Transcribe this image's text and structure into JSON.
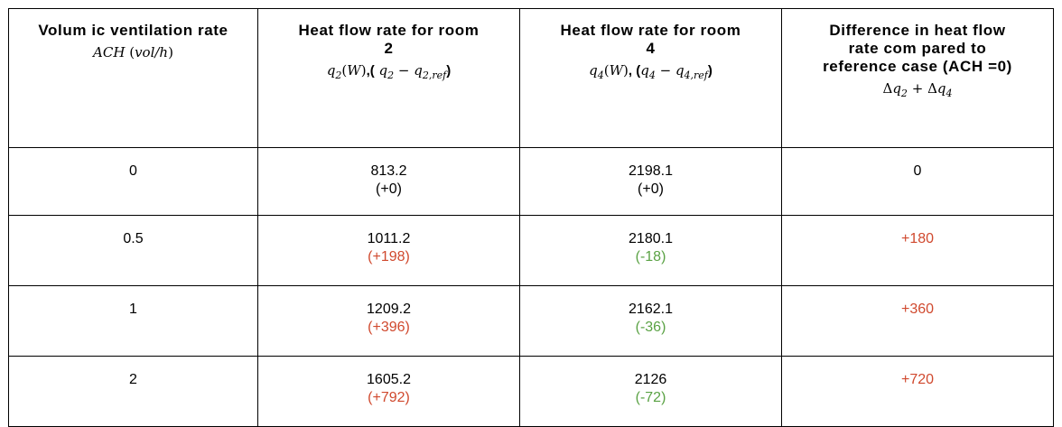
{
  "table": {
    "headers": {
      "c1": {
        "line1": "Volum ic ventilation rate",
        "math": "ACH (vol/h)"
      },
      "c2": {
        "line1": "Heat flow rate for room",
        "line2": "2",
        "math": "q2(W),( q2 − q2,ref)"
      },
      "c3": {
        "line1": "Heat flow rate for room",
        "line2": "4",
        "math": "q4(W), (q4 − q4,ref)"
      },
      "c4": {
        "line1": "Difference in heat flow",
        "line2": "rate com pared to",
        "line3": "reference case (ACH =0)",
        "math": "Δq2 + Δq4"
      }
    },
    "rows": [
      {
        "ach": "0",
        "q2": "813.2",
        "q2_diff": "(+0)",
        "q4": "2198.1",
        "q4_diff": "(+0)",
        "total": "0"
      },
      {
        "ach": "0.5",
        "q2": "1011.2",
        "q2_diff": "(+198)",
        "q4": "2180.1",
        "q4_diff": "(-18)",
        "total": "+180"
      },
      {
        "ach": "1",
        "q2": "1209.2",
        "q2_diff": "(+396)",
        "q4": "2162.1",
        "q4_diff": "(-36)",
        "total": "+360"
      },
      {
        "ach": "2",
        "q2": "1605.2",
        "q2_diff": "(+792)",
        "q4": "2126",
        "q4_diff": "(-72)",
        "total": "+720"
      }
    ],
    "colors": {
      "positive": "#d0492e",
      "negative": "#5aa244",
      "neutral": "#000000"
    }
  }
}
